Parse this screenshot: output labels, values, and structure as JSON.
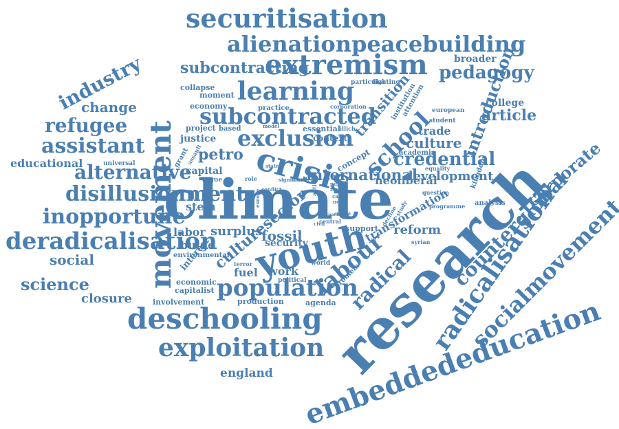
{
  "colors": {
    "word": "#4a7fb2",
    "background": "#ffffff"
  },
  "words": [
    "climate",
    "research",
    "securitisation",
    "embeddededucation",
    "deschooling",
    "exploitation",
    "movement",
    "youth",
    "crisis",
    "extremism",
    "learning",
    "alienationpeacebuilding",
    "radicalisation",
    "socialmovement",
    "school",
    "labour",
    "radical",
    "counterglobal",
    "union",
    "worker",
    "corporate",
    "introduction",
    "industry",
    "culturesector",
    "transition",
    "subcontracted",
    "exclusion",
    "population",
    "pedagogy",
    "subcontracting",
    "change",
    "refugee",
    "assistant",
    "educational",
    "alternative",
    "disillusionment",
    "inopportune",
    "deradicalisation",
    "social",
    "science",
    "closure",
    "england",
    "credential",
    "development",
    "culture",
    "trade",
    "article",
    "college",
    "fossil",
    "reform",
    "surplus",
    "labor",
    "bulge",
    "petro",
    "stem",
    "international",
    "security",
    "broader",
    "work",
    "fuel",
    "transformation",
    "neoliberal",
    "involvement",
    "economic",
    "capitalist",
    "production",
    "agenda",
    "political",
    "interest",
    "environmental",
    "problem",
    "collapse",
    "moment",
    "economy",
    "project",
    "based",
    "justice",
    "capital",
    "grant",
    "argue",
    "context",
    "essential",
    "practice",
    "corporation",
    "particular",
    "fighting",
    "attention",
    "institution",
    "student",
    "european",
    "academia",
    "equality",
    "kingdom",
    "analysis",
    "question",
    "programme",
    "syrian",
    "universal",
    "assault",
    "terror",
    "world",
    "central",
    "support",
    "illich",
    "model",
    "concept",
    "role",
    "significant",
    "border",
    "decline",
    "study",
    "state",
    "need",
    "cause",
    "conflict",
    "pupil",
    "europe",
    "action",
    "civil",
    "nation",
    "force",
    "critical",
    "approach"
  ]
}
